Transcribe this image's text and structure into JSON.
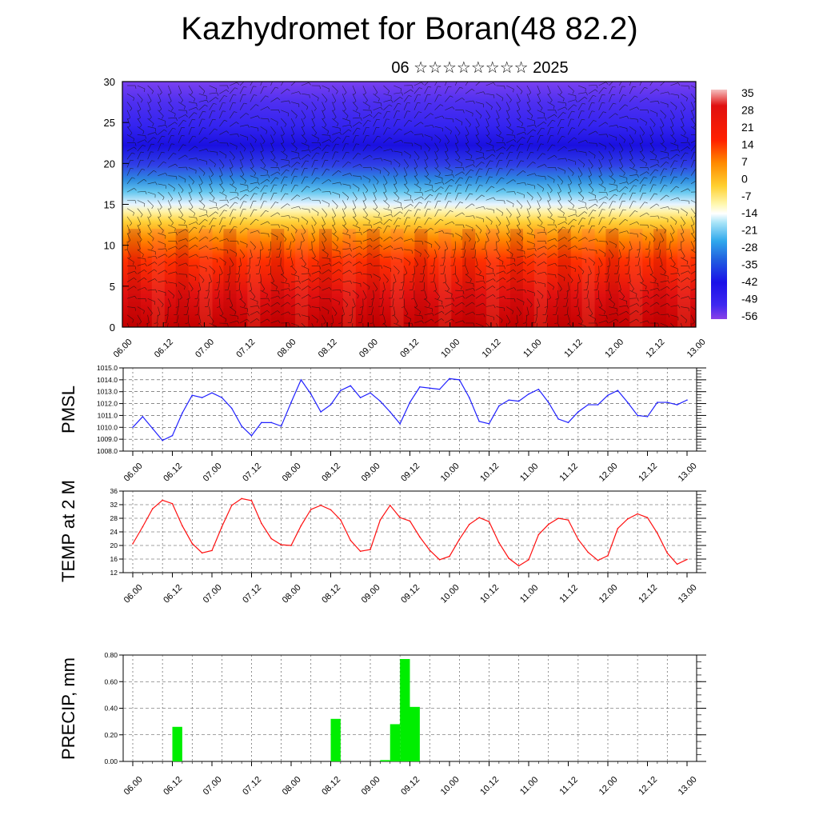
{
  "header": {
    "title": "Kazhydromet for Boran(48 82.2)",
    "subtitle": "06 ☆☆☆☆☆☆☆☆ 2025"
  },
  "colors": {
    "pmsl_line": "#2020ff",
    "temp_line": "#ff1010",
    "precip_bar": "#00ee00",
    "grid": "#444444"
  },
  "chart_data": [
    {
      "type": "heatmap",
      "ylim": [
        0,
        30
      ],
      "yticks": [
        0,
        5,
        10,
        15,
        20,
        25,
        30
      ],
      "xticks": [
        "06.00",
        "06.12",
        "07.00",
        "07.12",
        "08.00",
        "08.12",
        "09.00",
        "09.12",
        "10.00",
        "10.12",
        "11.00",
        "11.12",
        "12.00",
        "12.12",
        "13.00"
      ],
      "colorbar": {
        "labels": [
          "35",
          "28",
          "21",
          "14",
          "7",
          "0",
          "-7",
          "-14",
          "-21",
          "-28",
          "-35",
          "-42",
          "-49",
          "-56"
        ],
        "values": [
          35,
          28,
          21,
          14,
          7,
          0,
          -7,
          -14,
          -21,
          -28,
          -35,
          -42,
          -49,
          -56
        ]
      },
      "overlay": "wind barbs"
    },
    {
      "type": "line",
      "ylabel": "PMSL",
      "ylim": [
        1008.0,
        1015.0
      ],
      "yticks": [
        "1008.0",
        "1009.0",
        "1010.0",
        "1011.0",
        "1012.0",
        "1013.0",
        "1014.0",
        "1015.0"
      ],
      "xticks": [
        "06.00",
        "06.12",
        "07.00",
        "07.12",
        "08.00",
        "08.12",
        "09.00",
        "09.12",
        "10.00",
        "10.12",
        "11.00",
        "11.12",
        "12.00",
        "12.12",
        "13.00"
      ],
      "values": [
        1010.0,
        1010.9,
        1009.9,
        1008.9,
        1009.3,
        1011.2,
        1012.7,
        1012.5,
        1012.9,
        1012.5,
        1011.6,
        1010.1,
        1009.3,
        1010.4,
        1010.4,
        1010.1,
        1012.1,
        1014.0,
        1012.8,
        1011.3,
        1011.9,
        1013.1,
        1013.5,
        1012.5,
        1012.9,
        1012.2,
        1011.3,
        1010.3,
        1012.1,
        1013.4,
        1013.3,
        1013.2,
        1014.1,
        1014.0,
        1012.5,
        1010.5,
        1010.3,
        1011.8,
        1012.3,
        1012.2,
        1012.8,
        1013.2,
        1012.1,
        1010.7,
        1010.4,
        1011.3,
        1011.9,
        1011.9,
        1012.7,
        1013.1,
        1012.1,
        1011.0,
        1010.9,
        1012.1,
        1012.1,
        1011.9,
        1012.3
      ]
    },
    {
      "type": "line",
      "ylabel": "TEMP at 2 M",
      "ylim": [
        12,
        36
      ],
      "yticks": [
        "12",
        "16",
        "20",
        "24",
        "28",
        "32",
        "36"
      ],
      "xticks": [
        "06.00",
        "06.12",
        "07.00",
        "07.12",
        "08.00",
        "08.12",
        "09.00",
        "09.12",
        "10.00",
        "10.12",
        "11.00",
        "11.12",
        "12.00",
        "12.12",
        "13.00"
      ],
      "values": [
        20.5,
        25.5,
        30.8,
        33.3,
        32.3,
        25.8,
        20.6,
        17.8,
        18.5,
        25.5,
        31.8,
        33.8,
        33.2,
        26.5,
        22.0,
        20.2,
        20.0,
        25.8,
        30.6,
        31.8,
        30.5,
        27.5,
        21.5,
        18.3,
        18.8,
        27.5,
        31.8,
        28.2,
        27.2,
        22.5,
        18.6,
        15.8,
        16.8,
        21.8,
        26.2,
        28.2,
        27.0,
        20.8,
        16.2,
        14.0,
        15.8,
        23.2,
        26.2,
        28.0,
        27.5,
        21.8,
        18.0,
        15.6,
        17.0,
        25.0,
        27.8,
        29.3,
        28.2,
        23.6,
        17.8,
        14.5,
        15.9
      ]
    },
    {
      "type": "bar",
      "ylabel": "PRECIP, mm",
      "ylim": [
        0,
        0.8
      ],
      "yticks": [
        "0.00",
        "0.20",
        "0.40",
        "0.60",
        "0.80"
      ],
      "xticks": [
        "06.00",
        "06.12",
        "07.00",
        "07.12",
        "08.00",
        "08.12",
        "09.00",
        "09.12",
        "10.00",
        "10.12",
        "11.00",
        "11.12",
        "12.00",
        "12.12",
        "13.00"
      ],
      "bars": [
        {
          "t": 4.5,
          "value": 0.26
        },
        {
          "t": 20.5,
          "value": 0.32
        },
        {
          "t": 25.5,
          "value": 0.01
        },
        {
          "t": 26.5,
          "value": 0.28
        },
        {
          "t": 27.5,
          "value": 0.77
        },
        {
          "t": 28.5,
          "value": 0.41
        }
      ]
    }
  ]
}
